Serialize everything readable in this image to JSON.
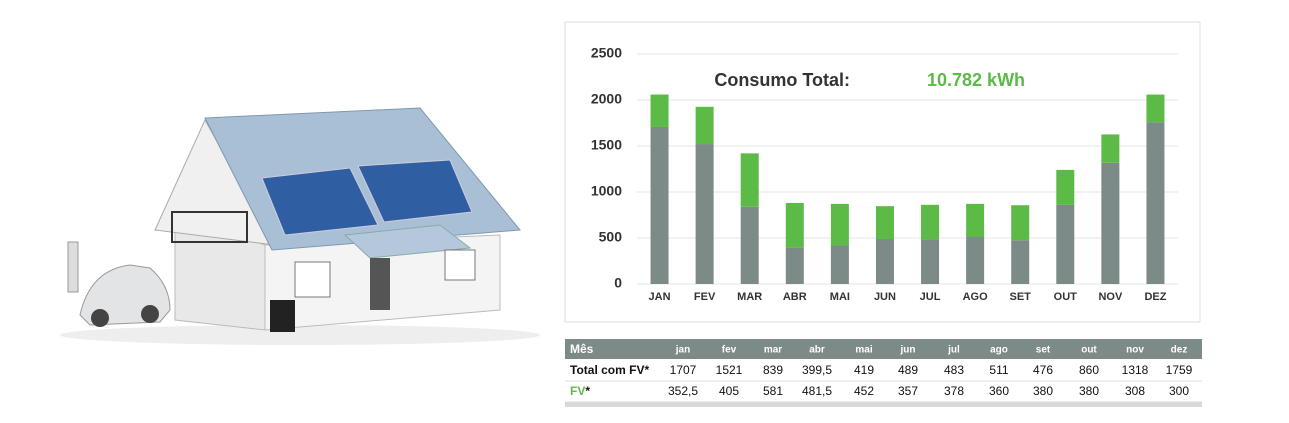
{
  "chart_data": {
    "type": "bar",
    "stacked": true,
    "title": "Consumo Total:",
    "total_label": "10.782 kWh",
    "total_color": "#5cba47",
    "categories": [
      "JAN",
      "FEV",
      "MAR",
      "ABR",
      "MAI",
      "JUN",
      "JUL",
      "AGO",
      "SET",
      "OUT",
      "NOV",
      "DEZ"
    ],
    "series": [
      {
        "color": "#7d8b88",
        "values": [
          1707,
          1521,
          839,
          399.5,
          419,
          489,
          483,
          511,
          476,
          860,
          1318,
          1759
        ],
        "value_labels": [
          "1707",
          "1521",
          "839",
          "399,5",
          "419",
          "489",
          "483",
          "511",
          "476",
          "860",
          "1318",
          "1759"
        ]
      },
      {
        "color": "#5cba47",
        "values": [
          352.5,
          405,
          581,
          481.5,
          452,
          357,
          378,
          360,
          380,
          380,
          308,
          300
        ],
        "value_labels": [
          "352,5",
          "405",
          "581",
          "481,5",
          "452",
          "357",
          "378",
          "360",
          "380",
          "380",
          "308",
          "300"
        ]
      }
    ],
    "ylim": [
      0,
      2500
    ],
    "yticks": [
      0,
      500,
      1000,
      1500,
      2000,
      2500
    ],
    "grid": true
  },
  "table": {
    "header": [
      "Mês",
      "jan",
      "fev",
      "mar",
      "abr",
      "mai",
      "jun",
      "jul",
      "ago",
      "set",
      "out",
      "nov",
      "dez"
    ],
    "rows": [
      {
        "label": "Total com FV*"
      },
      {
        "label": "FV",
        "suffix": "*"
      }
    ]
  }
}
